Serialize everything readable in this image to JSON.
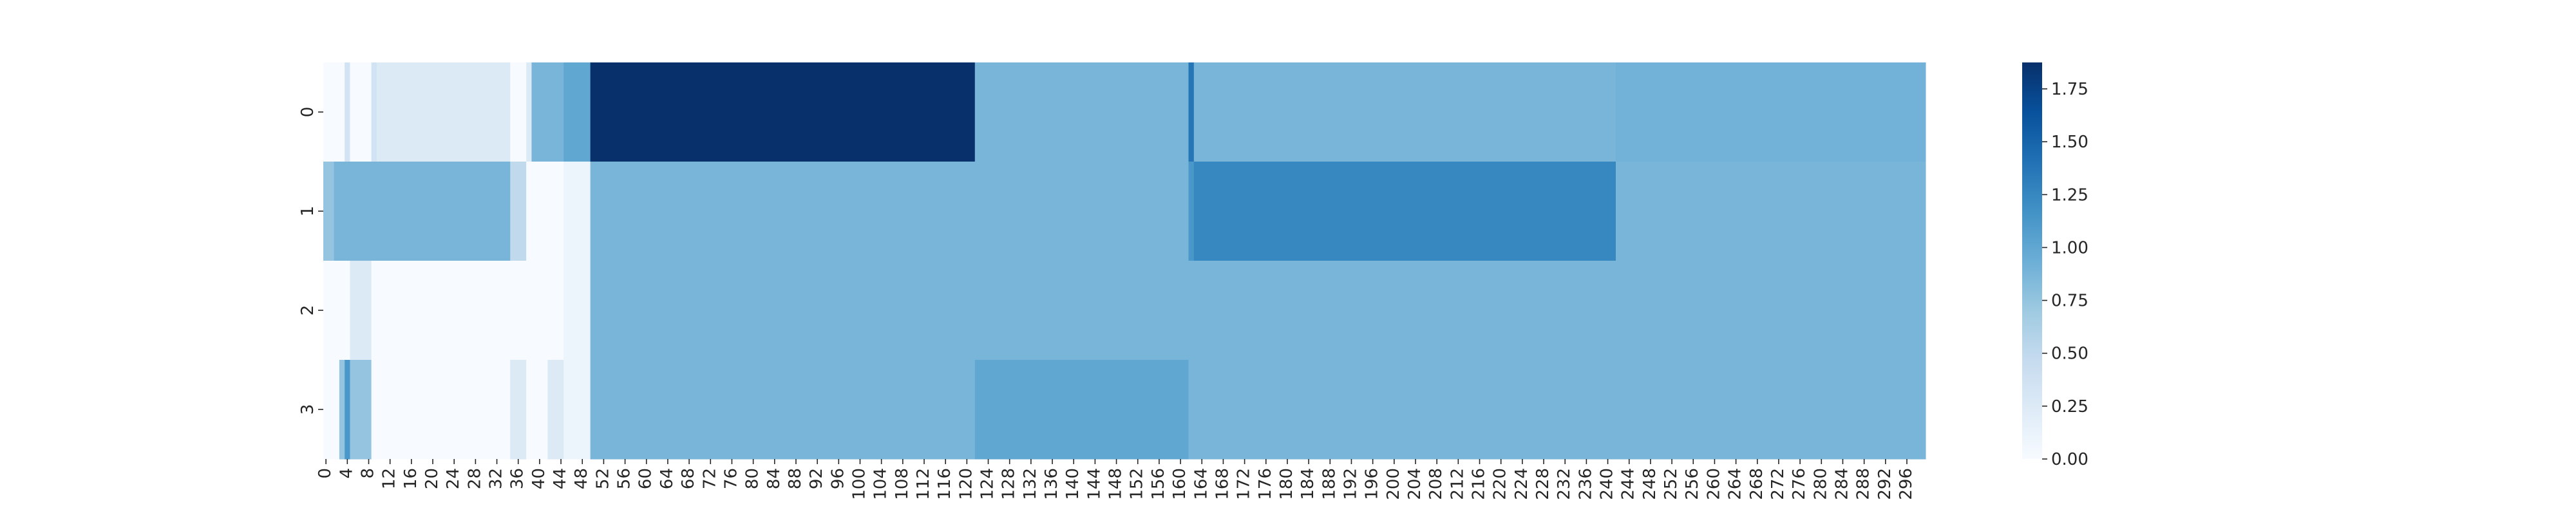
{
  "chart_data": {
    "type": "heatmap",
    "title": "",
    "xlabel": "",
    "ylabel": "",
    "x_count": 300,
    "x_tick_step": 4,
    "y_categories": [
      "0",
      "1",
      "2",
      "3"
    ],
    "value_range": [
      0,
      1.875
    ],
    "colormap": "Blues",
    "colorbar_ticks": [
      "0.00",
      "0.25",
      "0.50",
      "0.75",
      "1.00",
      "1.25",
      "1.50",
      "1.75"
    ],
    "rows": [
      {
        "label": "0",
        "segments": [
          {
            "start": 0,
            "end": 4,
            "value": 0.0
          },
          {
            "start": 4,
            "end": 5,
            "value": 0.35
          },
          {
            "start": 5,
            "end": 9,
            "value": 0.0
          },
          {
            "start": 9,
            "end": 10,
            "value": 0.35
          },
          {
            "start": 10,
            "end": 35,
            "value": 0.25
          },
          {
            "start": 35,
            "end": 38,
            "value": 0.0
          },
          {
            "start": 38,
            "end": 39,
            "value": 0.25
          },
          {
            "start": 39,
            "end": 45,
            "value": 0.875
          },
          {
            "start": 45,
            "end": 50,
            "value": 1.0
          },
          {
            "start": 50,
            "end": 122,
            "value": 1.875
          },
          {
            "start": 122,
            "end": 162,
            "value": 0.875
          },
          {
            "start": 162,
            "end": 163,
            "value": 1.375
          },
          {
            "start": 163,
            "end": 242,
            "value": 0.875
          },
          {
            "start": 242,
            "end": 300,
            "value": 0.9
          }
        ]
      },
      {
        "label": "1",
        "segments": [
          {
            "start": 0,
            "end": 2,
            "value": 0.75
          },
          {
            "start": 2,
            "end": 35,
            "value": 0.875
          },
          {
            "start": 35,
            "end": 38,
            "value": 0.5
          },
          {
            "start": 38,
            "end": 45,
            "value": 0.0
          },
          {
            "start": 45,
            "end": 50,
            "value": 0.1
          },
          {
            "start": 50,
            "end": 162,
            "value": 0.875
          },
          {
            "start": 162,
            "end": 163,
            "value": 1.125
          },
          {
            "start": 163,
            "end": 242,
            "value": 1.25
          },
          {
            "start": 242,
            "end": 300,
            "value": 0.875
          }
        ]
      },
      {
        "label": "2",
        "segments": [
          {
            "start": 0,
            "end": 5,
            "value": 0.0
          },
          {
            "start": 5,
            "end": 9,
            "value": 0.25
          },
          {
            "start": 9,
            "end": 45,
            "value": 0.0
          },
          {
            "start": 45,
            "end": 50,
            "value": 0.1
          },
          {
            "start": 50,
            "end": 300,
            "value": 0.875
          }
        ]
      },
      {
        "label": "3",
        "segments": [
          {
            "start": 0,
            "end": 3,
            "value": 0.0
          },
          {
            "start": 3,
            "end": 4,
            "value": 0.75
          },
          {
            "start": 4,
            "end": 5,
            "value": 1.125
          },
          {
            "start": 5,
            "end": 9,
            "value": 0.75
          },
          {
            "start": 9,
            "end": 35,
            "value": 0.0
          },
          {
            "start": 35,
            "end": 38,
            "value": 0.25
          },
          {
            "start": 38,
            "end": 42,
            "value": 0.0
          },
          {
            "start": 42,
            "end": 45,
            "value": 0.25
          },
          {
            "start": 45,
            "end": 50,
            "value": 0.1
          },
          {
            "start": 50,
            "end": 122,
            "value": 0.875
          },
          {
            "start": 122,
            "end": 162,
            "value": 1.0
          },
          {
            "start": 162,
            "end": 300,
            "value": 0.875
          }
        ]
      }
    ]
  }
}
